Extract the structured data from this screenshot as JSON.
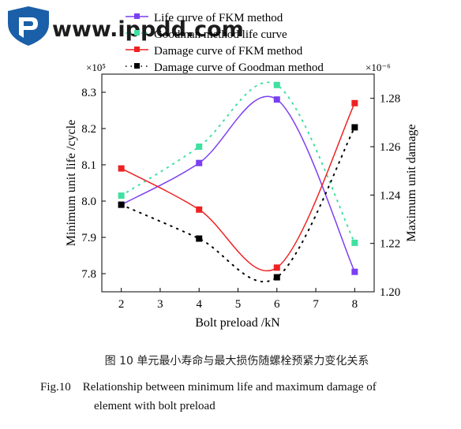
{
  "watermark": {
    "text": "www.ippdd.com",
    "logo": "shield-logo"
  },
  "caption_cn": "图 10   单元最小寿命与最大损伤随螺栓预紧力变化关系",
  "caption_en_line1": "Fig.10    Relationship between minimum life and maximum damage of",
  "caption_en_line2": "element with bolt preload",
  "chart_data": {
    "type": "line",
    "xlabel": "Bolt preload /kN",
    "ylabel": "Minimum unit life /cycle",
    "y2label": "Maximum unit damage",
    "y_multiplier": "×10⁵",
    "y2_multiplier": "×10⁻⁶",
    "xlim": [
      1.5,
      8.5
    ],
    "ylim": [
      7.75,
      8.35
    ],
    "y2lim": [
      1.2,
      1.29
    ],
    "xticks": [
      "2",
      "3",
      "4",
      "5",
      "6",
      "7",
      "8"
    ],
    "yticks": [
      "7.8",
      "7.9",
      "8.0",
      "8.1",
      "8.2",
      "8.3"
    ],
    "y2ticks": [
      "1.20",
      "1.22",
      "1.24",
      "1.26",
      "1.28"
    ],
    "legend_position": "top",
    "series": [
      {
        "name": "Life curve of FKM method",
        "axis": "left",
        "color": "#7b3ff2",
        "marker": "square",
        "style": "solid",
        "x": [
          2,
          4,
          6,
          8
        ],
        "values": [
          7.99,
          8.105,
          8.28,
          7.805
        ]
      },
      {
        "name": "Goodman method life curve",
        "axis": "left",
        "color": "#40e0a0",
        "marker": "square",
        "style": "dotted",
        "x": [
          2,
          4,
          6,
          8
        ],
        "values": [
          8.015,
          8.15,
          8.32,
          7.885
        ]
      },
      {
        "name": "Damage curve of FKM method",
        "axis": "right",
        "color": "#ee2222",
        "marker": "square",
        "style": "solid",
        "x": [
          2,
          4,
          6,
          8
        ],
        "values": [
          1.251,
          1.234,
          1.21,
          1.278
        ]
      },
      {
        "name": "Damage curve of Goodman method",
        "axis": "right",
        "color": "#000000",
        "marker": "square",
        "style": "dotted",
        "x": [
          2,
          4,
          6,
          8
        ],
        "values": [
          1.236,
          1.222,
          1.206,
          1.268
        ]
      }
    ]
  }
}
